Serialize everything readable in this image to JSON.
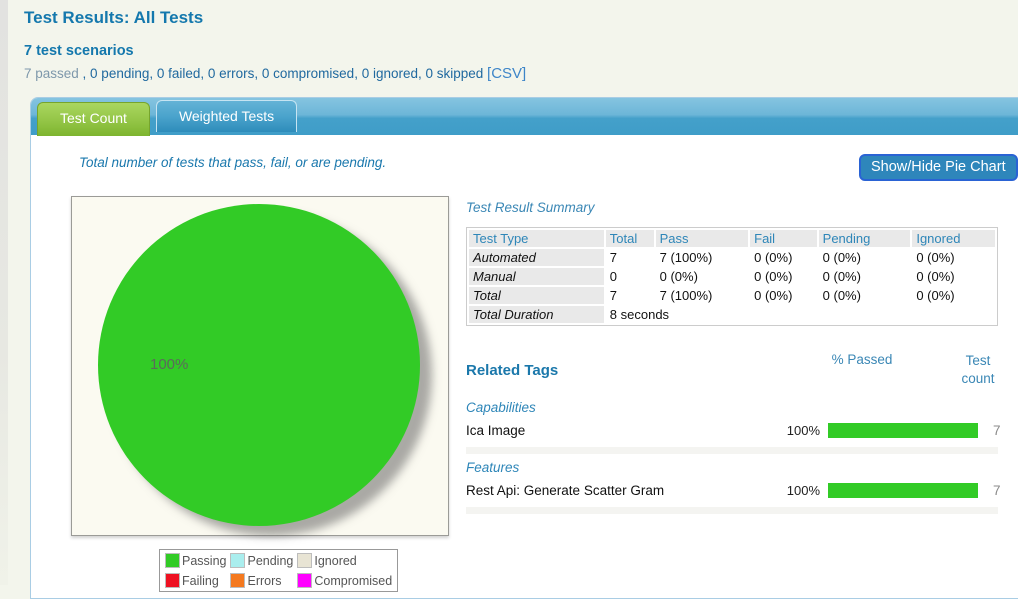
{
  "page": {
    "title": "Test Results: All Tests",
    "scenario_count": "7 test scenarios",
    "status": {
      "passed": "7 passed",
      "others": " , 0 pending, 0 failed, 0 errors, 0 compromised, 0 ignored, 0 skipped ",
      "csv": "[CSV]"
    }
  },
  "tabs": {
    "test_count": "Test Count",
    "weighted_tests": "Weighted Tests"
  },
  "panel": {
    "description": "Total number of tests that pass, fail, or are pending.",
    "toggle_button": "Show/Hide Pie Chart"
  },
  "chart_data": {
    "type": "pie",
    "title": "Test Count",
    "slices": [
      {
        "label": "Passing",
        "value": 100,
        "color": "#32cb26"
      }
    ],
    "pie_label": "100%",
    "legend_position": "bottom",
    "legend": [
      {
        "label": "Passing",
        "color": "#32cb26"
      },
      {
        "label": "Pending",
        "color": "#aaeeee"
      },
      {
        "label": "Ignored",
        "color": "#e8e4d4"
      },
      {
        "label": "Failing",
        "color": "#ee1122"
      },
      {
        "label": "Errors",
        "color": "#f4791f"
      },
      {
        "label": "Compromised",
        "color": "#ff00ff"
      }
    ]
  },
  "summary": {
    "heading": "Test Result Summary",
    "columns": [
      "Test Type",
      "Total",
      "Pass",
      "Fail",
      "Pending",
      "Ignored"
    ],
    "rows": [
      {
        "label": "Automated",
        "cells": [
          "7",
          "7 (100%)",
          "0 (0%)",
          "0 (0%)",
          "0 (0%)"
        ]
      },
      {
        "label": "Manual",
        "cells": [
          "0",
          "0 (0%)",
          "0 (0%)",
          "0 (0%)",
          "0 (0%)"
        ]
      },
      {
        "label": "Total",
        "cells": [
          "7",
          "7 (100%)",
          "0 (0%)",
          "0 (0%)",
          "0 (0%)"
        ]
      }
    ],
    "duration_label": "Total Duration",
    "duration_value": "8 seconds"
  },
  "related_tags": {
    "heading": "Related Tags",
    "percent_header": "% Passed",
    "count_header": "Test count",
    "bar_color": "#32cb26",
    "groups": [
      {
        "name": "Capabilities",
        "items": [
          {
            "name": "Ica Image",
            "percent_label": "100%",
            "percent_value": 100,
            "count": "7"
          }
        ]
      },
      {
        "name": "Features",
        "items": [
          {
            "name": "Rest Api: Generate Scatter Gram",
            "percent_label": "100%",
            "percent_value": 100,
            "count": "7"
          }
        ]
      }
    ]
  }
}
